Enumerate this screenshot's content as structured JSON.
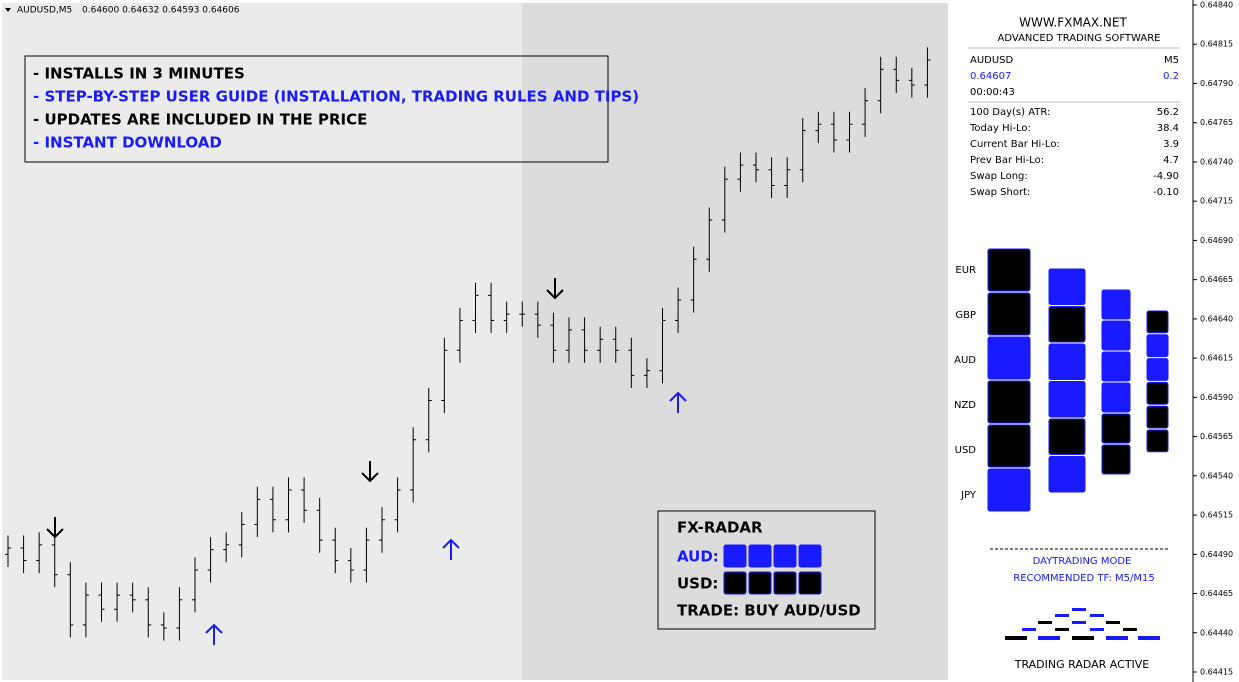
{
  "header": {
    "symbol": "AUDUSD,M5",
    "quote": "0.64600 0.64632 0.64593 0.64606"
  },
  "promo": {
    "lines": [
      "- INSTALLS IN 3 MINUTES",
      "- STEP-BY-STEP USER GUIDE (INSTALLATION, TRADING RULES AND TIPS)",
      "- UPDATES ARE INCLUDED IN THE PRICE",
      "- INSTANT DOWNLOAD"
    ]
  },
  "chart_data": {
    "type": "candlestick",
    "color": "#000000",
    "open": [
      0.6449,
      0.64494,
      0.64486,
      0.64496,
      0.64477,
      0.64445,
      0.64464,
      0.64455,
      0.64464,
      0.64461,
      0.64445,
      0.64443,
      0.64461,
      0.6448,
      0.64493,
      0.64496,
      0.64509,
      0.64525,
      0.64512,
      0.64531,
      0.64518,
      0.64499,
      0.64486,
      0.6448,
      0.64499,
      0.64512,
      0.64531,
      0.64563,
      0.64588,
      0.6462,
      0.64639,
      0.64655,
      0.64639,
      0.64643,
      0.64643,
      0.64636,
      0.6462,
      0.64633,
      0.6462,
      0.64627,
      0.6462,
      0.64604,
      0.64607,
      0.64639,
      0.64652,
      0.64678,
      0.64703,
      0.64729,
      0.64738,
      0.64735,
      0.64725,
      0.64735,
      0.6476,
      0.64764,
      0.64754,
      0.64764,
      0.64779,
      0.64799,
      0.64792,
      0.64789
    ],
    "high": [
      0.64502,
      0.64502,
      0.64504,
      0.64504,
      0.64485,
      0.64472,
      0.64472,
      0.64472,
      0.64472,
      0.64469,
      0.64453,
      0.64469,
      0.64488,
      0.64501,
      0.64504,
      0.64517,
      0.64533,
      0.64533,
      0.64539,
      0.64539,
      0.64526,
      0.64507,
      0.64494,
      0.64507,
      0.6452,
      0.64539,
      0.64571,
      0.64596,
      0.64628,
      0.64647,
      0.64663,
      0.64663,
      0.64651,
      0.64651,
      0.64651,
      0.64644,
      0.64641,
      0.64641,
      0.64635,
      0.64635,
      0.64628,
      0.64615,
      0.64647,
      0.6466,
      0.64686,
      0.64711,
      0.64737,
      0.64746,
      0.64746,
      0.64743,
      0.64743,
      0.64768,
      0.64772,
      0.64772,
      0.64772,
      0.64787,
      0.64807,
      0.64807,
      0.648,
      0.64813
    ],
    "low": [
      0.64482,
      0.64478,
      0.64478,
      0.64469,
      0.64437,
      0.64437,
      0.64447,
      0.64447,
      0.64453,
      0.64437,
      0.64435,
      0.64435,
      0.64453,
      0.64472,
      0.64485,
      0.64488,
      0.64501,
      0.64504,
      0.64504,
      0.6451,
      0.64491,
      0.64478,
      0.64472,
      0.64472,
      0.64491,
      0.64504,
      0.64523,
      0.64555,
      0.6458,
      0.64612,
      0.64631,
      0.64631,
      0.64631,
      0.64635,
      0.64628,
      0.64612,
      0.64612,
      0.64612,
      0.64612,
      0.64612,
      0.64596,
      0.64596,
      0.64599,
      0.64631,
      0.64644,
      0.6467,
      0.64695,
      0.64721,
      0.64727,
      0.64717,
      0.64717,
      0.64727,
      0.64752,
      0.64746,
      0.64746,
      0.64756,
      0.64771,
      0.64784,
      0.64781,
      0.64781
    ],
    "close": [
      0.64494,
      0.64486,
      0.64496,
      0.64477,
      0.64445,
      0.64464,
      0.64455,
      0.64464,
      0.64461,
      0.64445,
      0.64443,
      0.64461,
      0.6448,
      0.64493,
      0.64496,
      0.64509,
      0.64525,
      0.64512,
      0.64531,
      0.64518,
      0.64499,
      0.64486,
      0.6448,
      0.64499,
      0.64512,
      0.64531,
      0.64563,
      0.64588,
      0.6462,
      0.64639,
      0.64655,
      0.64639,
      0.64643,
      0.64643,
      0.64636,
      0.6462,
      0.64633,
      0.6462,
      0.64627,
      0.6462,
      0.64604,
      0.64607,
      0.64639,
      0.64652,
      0.64678,
      0.64703,
      0.64729,
      0.64738,
      0.64735,
      0.64725,
      0.64735,
      0.6476,
      0.64764,
      0.64754,
      0.64764,
      0.64779,
      0.64799,
      0.64792,
      0.64789,
      0.64805
    ],
    "ylim": [
      0.64415,
      0.6484
    ],
    "yticks": [
      {
        "value": 0.6484,
        "label": "0.64840"
      },
      {
        "value": 0.64815,
        "label": "0.64815"
      },
      {
        "value": 0.6479,
        "label": "0.64790"
      },
      {
        "value": 0.64765,
        "label": "0.64765"
      },
      {
        "value": 0.6474,
        "label": "0.64740"
      },
      {
        "value": 0.64715,
        "label": "0.64715"
      },
      {
        "value": 0.6469,
        "label": "0.64690"
      },
      {
        "value": 0.64665,
        "label": "0.64665"
      },
      {
        "value": 0.6464,
        "label": "0.64640"
      },
      {
        "value": 0.64615,
        "label": "0.64615"
      },
      {
        "value": 0.6459,
        "label": "0.64590"
      },
      {
        "value": 0.64565,
        "label": "0.64565"
      },
      {
        "value": 0.6454,
        "label": "0.64540"
      },
      {
        "value": 0.64515,
        "label": "0.64515"
      },
      {
        "value": 0.6449,
        "label": "0.64490"
      },
      {
        "value": 0.64465,
        "label": "0.64465"
      },
      {
        "value": 0.6444,
        "label": "0.64440"
      },
      {
        "value": 0.64415,
        "label": "0.64415"
      }
    ]
  },
  "panel": {
    "site": "WWW.FXMAX.NET",
    "tagline": "ADVANCED TRADING SOFTWARE",
    "symbol": "AUDUSD",
    "timeframe": "M5",
    "price": "0.64607",
    "spread": "0.2",
    "timer": "00:00:43",
    "stats": [
      [
        "100 Day(s) ATR:",
        "56.2"
      ],
      [
        "Today Hi-Lo:",
        "38.4"
      ],
      [
        "Current Bar Hi-Lo:",
        "3.9"
      ],
      [
        "Prev Bar Hi-Lo:",
        "4.7"
      ],
      [
        "Swap Long:",
        "-4.90"
      ],
      [
        "Swap Short:",
        "-0.10"
      ]
    ]
  },
  "radar": {
    "currencies": [
      "EUR",
      "GBP",
      "AUD",
      "NZD",
      "USD",
      "JPY"
    ],
    "mode": "DAYTRADING MODE",
    "tf": "RECOMMENDED TF: M5/M15",
    "status": "TRADING RADAR ACTIVE"
  },
  "fx_radar": {
    "title": "FX-RADAR",
    "aud": "AUD:",
    "usd": "USD:",
    "trade": "TRADE: BUY AUD/USD"
  }
}
